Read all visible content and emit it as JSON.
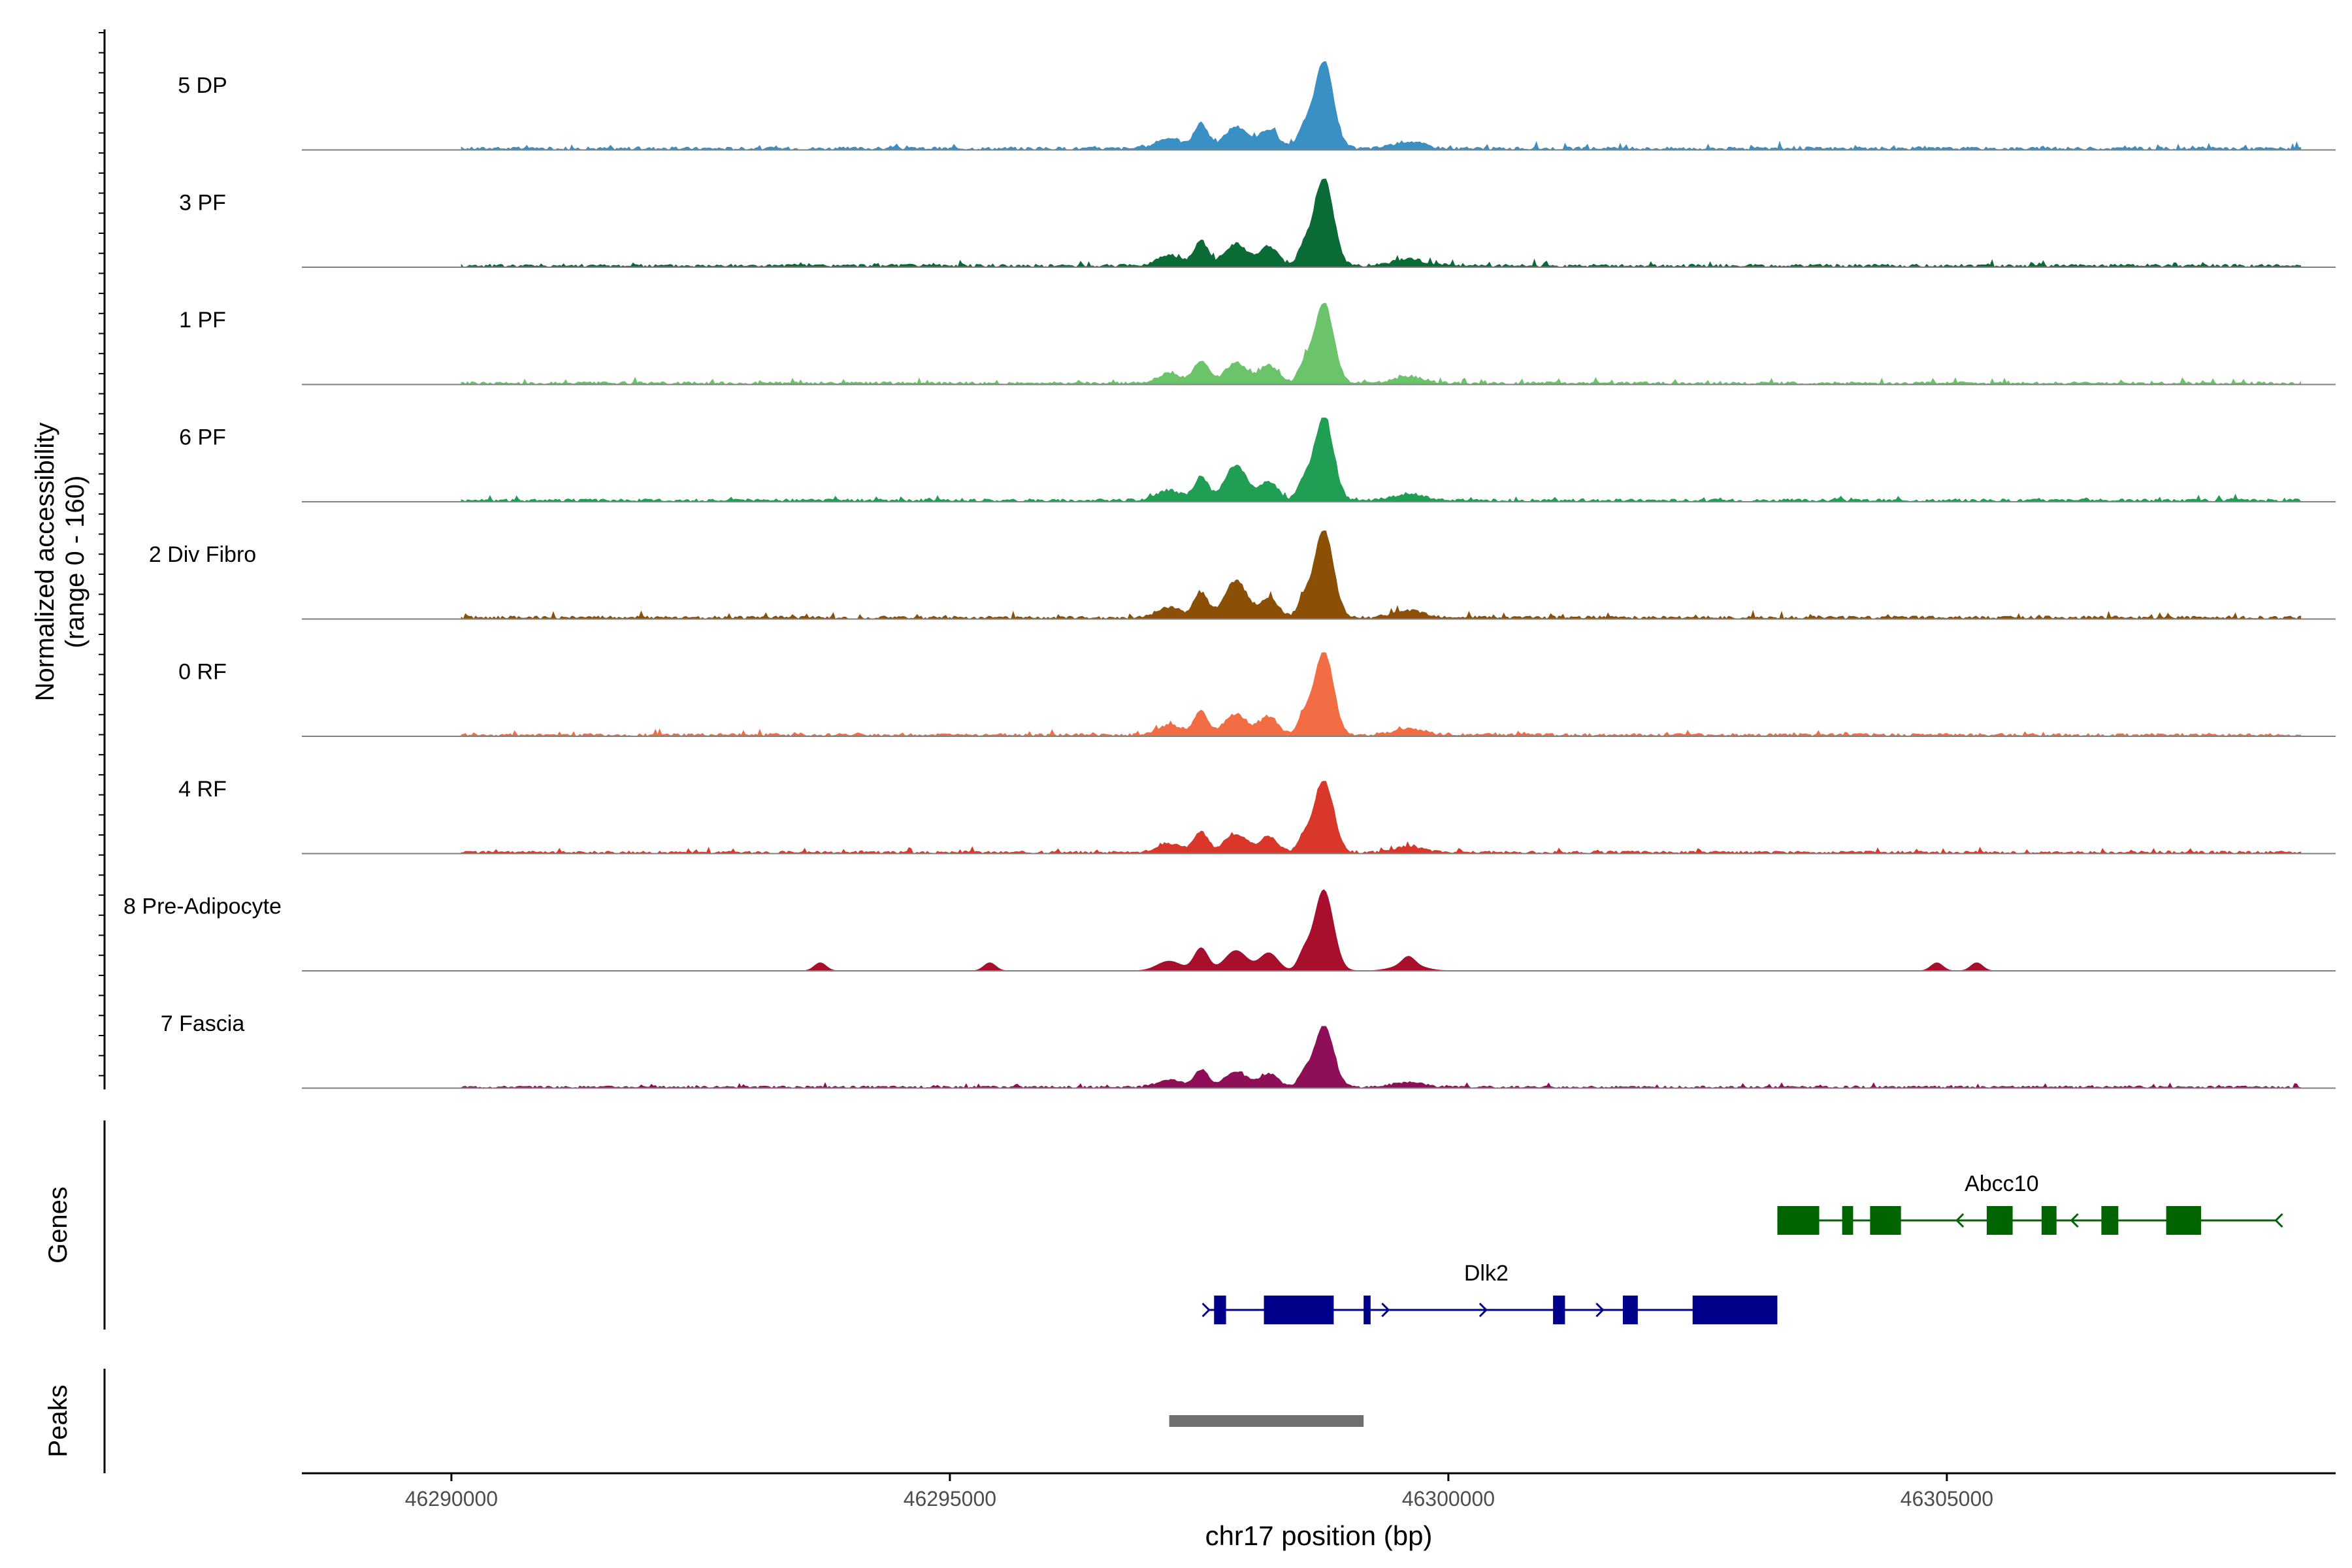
{
  "chart_data": {
    "type": "area",
    "title": "",
    "chromosome": "chr17",
    "xlabel": "chr17 position (bp)",
    "xlim": [
      46288500,
      46308900
    ],
    "x_ticks": [
      46290000,
      46295000,
      46300000,
      46305000
    ],
    "x_tick_labels": [
      "46290000",
      "46295000",
      "46300000",
      "46305000"
    ],
    "coverage": {
      "ylabel_line1": "Normalized accessibility",
      "ylabel_line2": "(range 0 - 160)",
      "ylim": [
        0,
        160
      ],
      "tracks": [
        {
          "name": "5 DP",
          "color": "#3A8FC4",
          "peak_scale": 1.0,
          "variant": 0
        },
        {
          "name": "3 PF",
          "color": "#0B6B36",
          "peak_scale": 1.0,
          "variant": 1
        },
        {
          "name": "1 PF",
          "color": "#6CC46A",
          "peak_scale": 0.92,
          "variant": 2
        },
        {
          "name": "6 PF",
          "color": "#1F9E54",
          "peak_scale": 0.95,
          "variant": 3
        },
        {
          "name": "2 Div Fibro",
          "color": "#8C4F06",
          "peak_scale": 1.0,
          "variant": 4
        },
        {
          "name": "0 RF",
          "color": "#F26D43",
          "peak_scale": 0.95,
          "variant": 5
        },
        {
          "name": "4 RF",
          "color": "#D9372A",
          "peak_scale": 0.82,
          "variant": 6
        },
        {
          "name": "8 Pre-Adipocyte",
          "color": "#A80F2D",
          "peak_scale": 0.92,
          "variant": 7
        },
        {
          "name": "7 Fascia",
          "color": "#8E0F57",
          "peak_scale": 0.7,
          "variant": 8
        }
      ],
      "main_peak_center": 46298750
    },
    "genes_track": {
      "label": "Genes",
      "genes": [
        {
          "name": "Abcc10",
          "strand": "-",
          "color": "#006400",
          "start": 46303300,
          "end": 46308300,
          "label_pos": 46305550,
          "exons": [
            [
              46303300,
              46303720
            ],
            [
              46303950,
              46304060
            ],
            [
              46304230,
              46304540
            ],
            [
              46305400,
              46305660
            ],
            [
              46305950,
              46306100
            ],
            [
              46306550,
              46306720
            ],
            [
              46307200,
              46307550
            ]
          ],
          "arrows": [
            46305100,
            46306250,
            46308300
          ]
        },
        {
          "name": "Dlk2",
          "strand": "+",
          "color": "#00008B",
          "start": 46297600,
          "end": 46303300,
          "label_pos": 46300380,
          "exons": [
            [
              46297650,
              46297770
            ],
            [
              46298150,
              46298850
            ],
            [
              46299150,
              46299220
            ],
            [
              46301050,
              46301170
            ],
            [
              46301750,
              46301900
            ],
            [
              46302450,
              46303300
            ]
          ],
          "arrows": [
            46297600,
            46299400,
            46300380,
            46301550
          ]
        }
      ]
    },
    "peaks_track": {
      "label": "Peaks",
      "color": "#707070",
      "peaks": [
        [
          46297200,
          46299150
        ]
      ]
    }
  }
}
